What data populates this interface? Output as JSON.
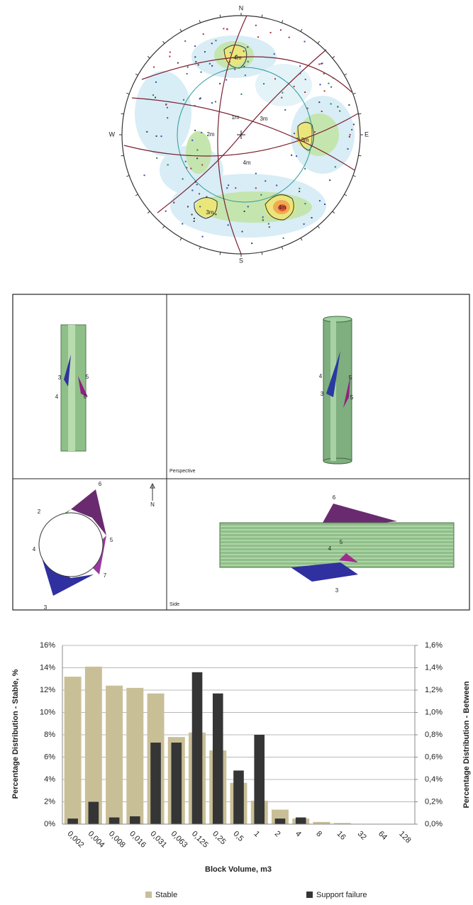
{
  "stereonet": {
    "north": "N",
    "south": "S",
    "east": "E",
    "west": "W",
    "contour_labels": [
      "4m",
      "1m",
      "3m",
      "2m",
      "3m",
      "4m",
      "3m",
      "4m"
    ]
  },
  "block_views": {
    "plan_labels": [
      "3",
      "5",
      "4",
      "6"
    ],
    "perspective_title": "Perspective",
    "perspective_labels": [
      "4",
      "5",
      "3",
      "5"
    ],
    "north": "N",
    "section_labels": [
      "6",
      "2",
      "4",
      "5",
      "7",
      "3"
    ],
    "side_title": "Side",
    "side_labels": [
      "6",
      "4",
      "5",
      "3"
    ]
  },
  "chart_data": {
    "type": "bar",
    "x_label": "Block Volume, m3",
    "y_label": "Percentage Distribution - Stable, %",
    "y2_label": "Percentage Distribution - Between",
    "categories": [
      "0,002",
      "0,004",
      "0,008",
      "0,016",
      "0,031",
      "0,063",
      "0,125",
      "0,25",
      "0,5",
      "1",
      "2",
      "4",
      "8",
      "16",
      "32",
      "64",
      "128"
    ],
    "series": [
      {
        "name": "Stable",
        "color": "#c9bf97",
        "values": [
          13.2,
          14.1,
          12.4,
          12.2,
          11.7,
          7.8,
          8.2,
          6.6,
          3.7,
          2.1,
          1.3,
          0.5,
          0.2,
          0.1,
          0,
          0,
          0
        ]
      },
      {
        "name": "Support failure",
        "color": "#353535",
        "axis": "y2",
        "values": [
          0.05,
          0.2,
          0.06,
          0.07,
          0.73,
          0.73,
          1.36,
          1.17,
          0.48,
          0.8,
          0.05,
          0.06,
          0,
          0,
          0,
          0,
          0
        ]
      }
    ],
    "ylim": [
      0,
      16
    ],
    "yticks": [
      {
        "value": 0,
        "label": "0%"
      },
      {
        "value": 2,
        "label": "2%"
      },
      {
        "value": 4,
        "label": "4%"
      },
      {
        "value": 6,
        "label": "6%"
      },
      {
        "value": 8,
        "label": "8%"
      },
      {
        "value": 10,
        "label": "10%"
      },
      {
        "value": 12,
        "label": "12%"
      },
      {
        "value": 14,
        "label": "14%"
      },
      {
        "value": 16,
        "label": "16%"
      }
    ],
    "y2lim": [
      0,
      1.6
    ],
    "y2ticks": [
      {
        "value": 0,
        "label": "0,0%"
      },
      {
        "value": 0.2,
        "label": "0,2%"
      },
      {
        "value": 0.4,
        "label": "0,4%"
      },
      {
        "value": 0.6,
        "label": "0,6%"
      },
      {
        "value": 0.8,
        "label": "0,8%"
      },
      {
        "value": 1.0,
        "label": "1,0%"
      },
      {
        "value": 1.2,
        "label": "1,2%"
      },
      {
        "value": 1.4,
        "label": "1,4%"
      },
      {
        "value": 1.6,
        "label": "1,6%"
      }
    ],
    "grid": true,
    "legend": "bottom"
  }
}
